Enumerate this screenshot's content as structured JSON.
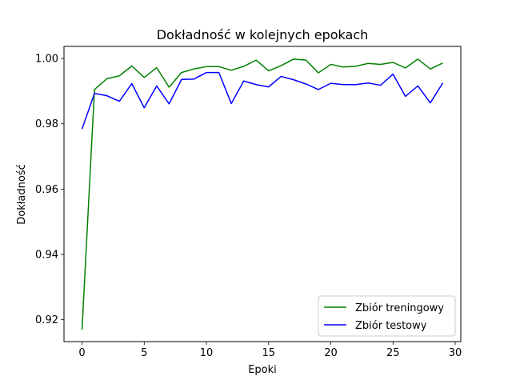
{
  "chart_data": {
    "type": "line",
    "title": "Dokładność w kolejnych epokach",
    "xlabel": "Epoki",
    "ylabel": "Dokładność",
    "xlim": [
      -1.45,
      30.45
    ],
    "ylim": [
      0.9133,
      1.0037
    ],
    "xticks": [
      0,
      5,
      10,
      15,
      20,
      25,
      30
    ],
    "yticks": [
      0.92,
      0.94,
      0.96,
      0.98,
      1.0
    ],
    "ytick_labels": [
      "0.92",
      "0.94",
      "0.96",
      "0.98",
      "1.00"
    ],
    "grid": false,
    "legend_position": "lower-right",
    "x": [
      0,
      1,
      2,
      3,
      4,
      5,
      6,
      7,
      8,
      9,
      10,
      11,
      12,
      13,
      14,
      15,
      16,
      17,
      18,
      19,
      20,
      21,
      22,
      23,
      24,
      25,
      26,
      27,
      28,
      29
    ],
    "series": [
      {
        "name": "Zbiór treningowy",
        "color": "#008000",
        "values": [
          0.917,
          0.9905,
          0.9938,
          0.9947,
          0.9977,
          0.9942,
          0.9972,
          0.9912,
          0.9957,
          0.9968,
          0.9975,
          0.9975,
          0.9964,
          0.9976,
          0.9995,
          0.9962,
          0.9978,
          0.9998,
          0.9995,
          0.9956,
          0.9982,
          0.9974,
          0.9976,
          0.9985,
          0.9982,
          0.9988,
          0.9971,
          0.9998,
          0.9968,
          0.9986
        ]
      },
      {
        "name": "Zbiór testowy",
        "color": "#0000ff",
        "values": [
          0.9784,
          0.9893,
          0.9886,
          0.9869,
          0.9923,
          0.9849,
          0.9916,
          0.9861,
          0.9936,
          0.9937,
          0.9957,
          0.9957,
          0.9862,
          0.9931,
          0.992,
          0.9913,
          0.9945,
          0.9935,
          0.9922,
          0.9905,
          0.9924,
          0.992,
          0.992,
          0.9925,
          0.9918,
          0.9952,
          0.9884,
          0.9916,
          0.9864,
          0.9925
        ]
      }
    ]
  }
}
